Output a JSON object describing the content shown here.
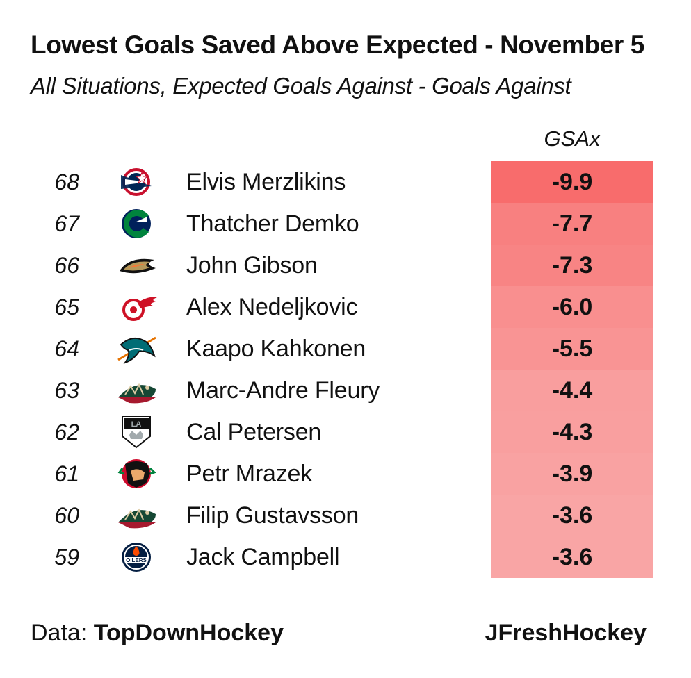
{
  "title": "Lowest Goals Saved Above Expected -  November 5",
  "subtitle": "All Situations, Expected Goals Against - Goals Against",
  "footer": {
    "source_prefix": "Data: ",
    "source": "TopDownHockey",
    "credit": "JFreshHockey"
  },
  "colors": {
    "cell_min": "#f86c6c",
    "cell_max": "#f9a5a5",
    "text": "#111111"
  },
  "chart_data": {
    "type": "table",
    "columns": [
      "",
      "",
      "",
      "GSAx"
    ],
    "value_header": "GSAx",
    "rows": [
      {
        "rank": "68",
        "team_logo": "columbus-blue-jackets-logo",
        "player": "Elvis Merzlikins",
        "value": -9.9,
        "value_label": "-9.9"
      },
      {
        "rank": "67",
        "team_logo": "vancouver-canucks-logo",
        "player": "Thatcher Demko",
        "value": -7.7,
        "value_label": "-7.7"
      },
      {
        "rank": "66",
        "team_logo": "anaheim-ducks-logo",
        "player": "John Gibson",
        "value": -7.3,
        "value_label": "-7.3"
      },
      {
        "rank": "65",
        "team_logo": "detroit-red-wings-logo",
        "player": "Alex Nedeljkovic",
        "value": -6.0,
        "value_label": "-6.0"
      },
      {
        "rank": "64",
        "team_logo": "san-jose-sharks-logo",
        "player": "Kaapo Kahkonen",
        "value": -5.5,
        "value_label": "-5.5"
      },
      {
        "rank": "63",
        "team_logo": "minnesota-wild-logo",
        "player": "Marc-Andre Fleury",
        "value": -4.4,
        "value_label": "-4.4"
      },
      {
        "rank": "62",
        "team_logo": "los-angeles-kings-logo",
        "player": "Cal Petersen",
        "value": -4.3,
        "value_label": "-4.3"
      },
      {
        "rank": "61",
        "team_logo": "chicago-blackhawks-logo",
        "player": "Petr Mrazek",
        "value": -3.9,
        "value_label": "-3.9"
      },
      {
        "rank": "60",
        "team_logo": "minnesota-wild-logo",
        "player": "Filip Gustavsson",
        "value": -3.6,
        "value_label": "-3.6"
      },
      {
        "rank": "59",
        "team_logo": "edmonton-oilers-logo",
        "player": "Jack Campbell",
        "value": -3.6,
        "value_label": "-3.6"
      }
    ]
  }
}
